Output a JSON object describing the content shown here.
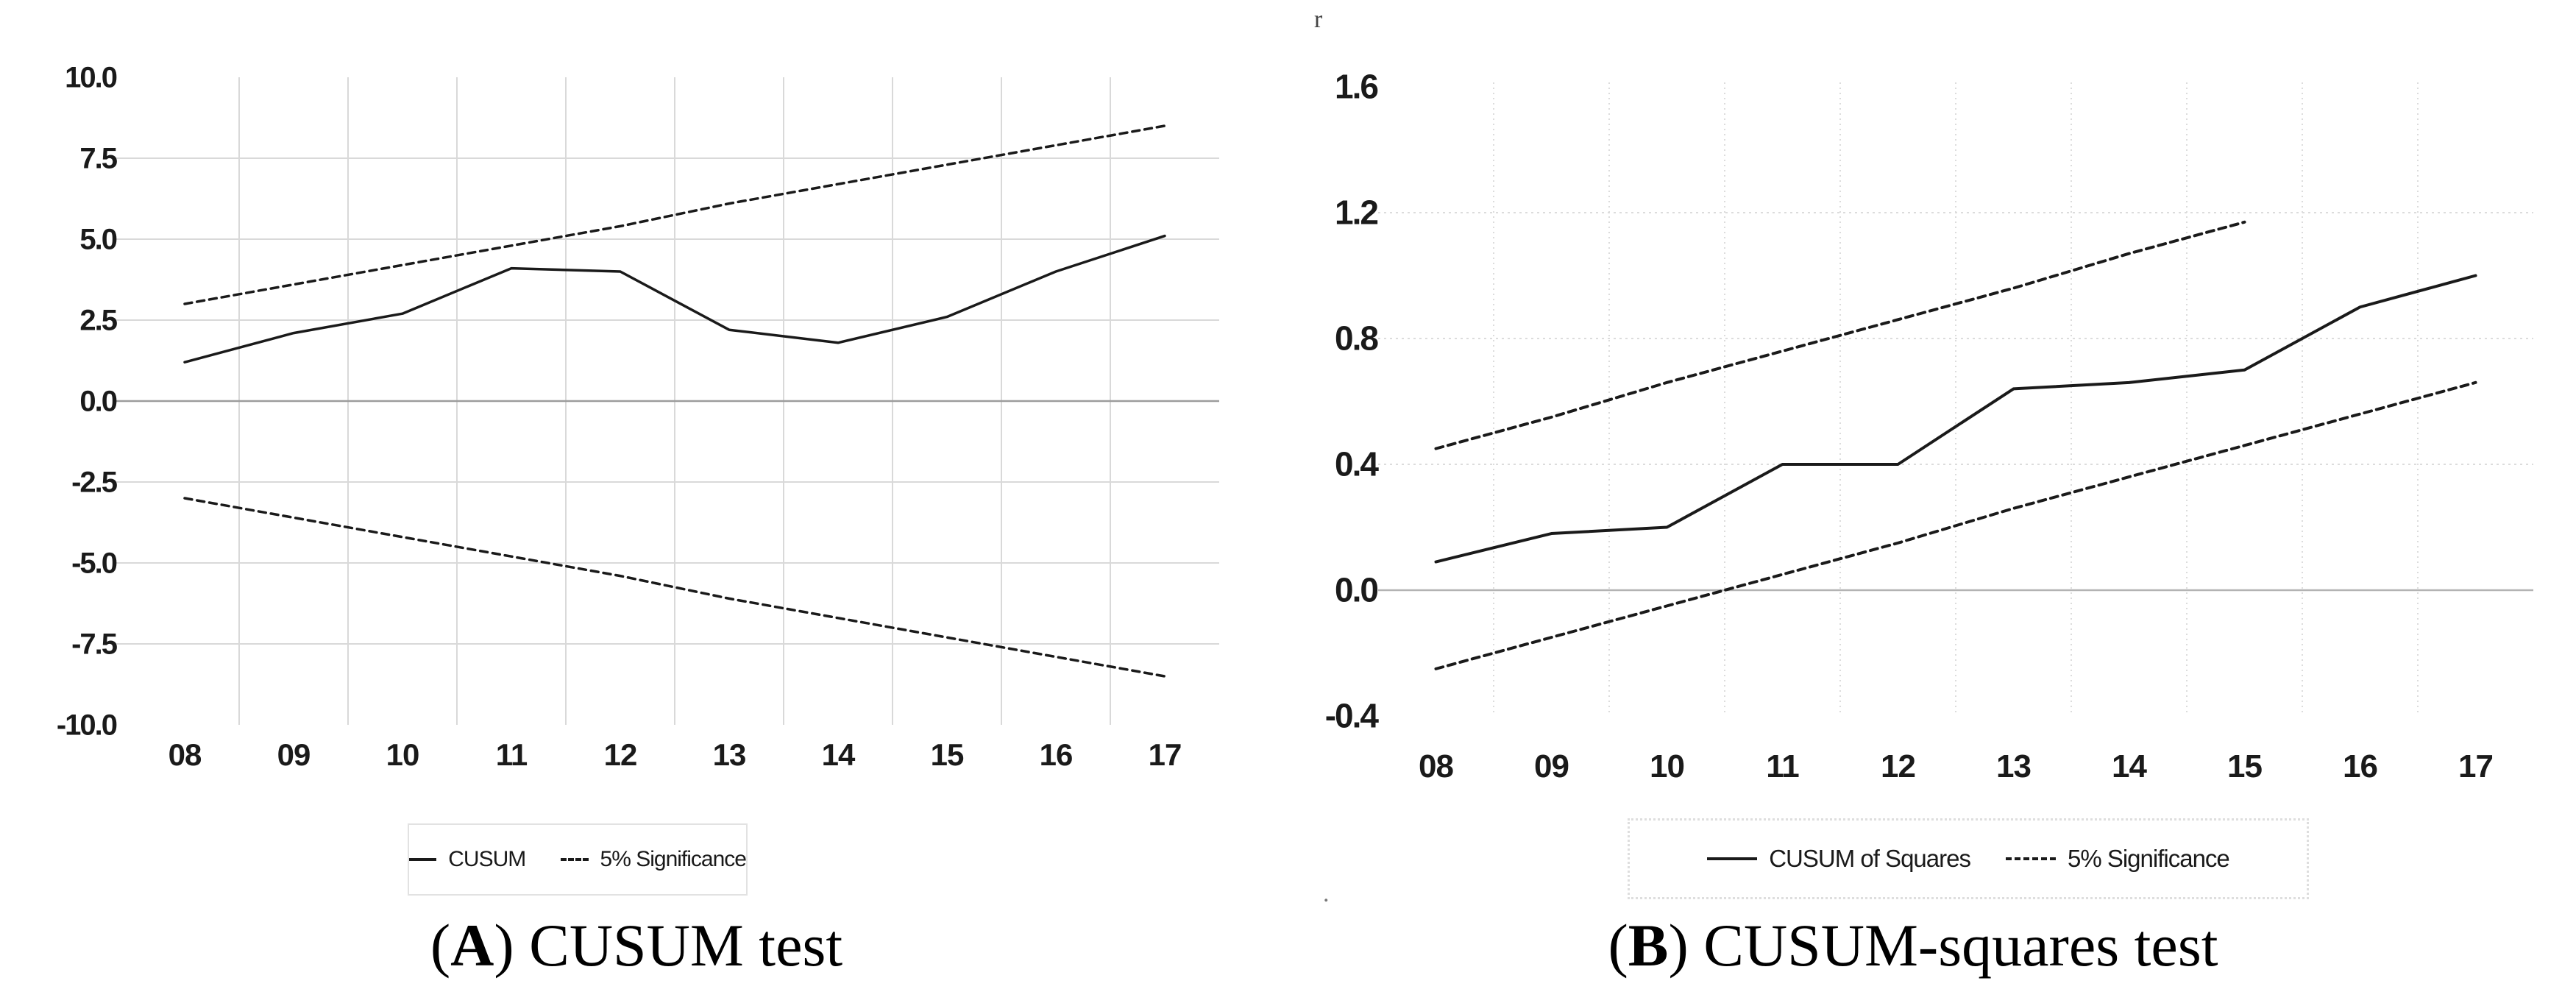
{
  "artifacts": {
    "top_mark": "r",
    "stray_dot": "."
  },
  "chart_data": [
    {
      "type": "line",
      "panel": "A",
      "caption": {
        "open": "(",
        "letter": "A",
        "rest": ") CUSUM test"
      },
      "categories": [
        "08",
        "09",
        "10",
        "11",
        "12",
        "13",
        "14",
        "15",
        "16",
        "17"
      ],
      "xlabel": "",
      "ylabel": "",
      "ylim": [
        -10.0,
        10.0
      ],
      "ytick_labels": [
        "10.0",
        "7.5",
        "5.0",
        "2.5",
        "0.0",
        "-2.5",
        "-5.0",
        "-7.5",
        "-10.0"
      ],
      "ytick_values": [
        10.0,
        7.5,
        5.0,
        2.5,
        0.0,
        -2.5,
        -5.0,
        -7.5,
        -10.0
      ],
      "gridline_values": [
        7.5,
        5.0,
        2.5,
        -2.5,
        -5.0,
        -7.5
      ],
      "zero_line_value": 0.0,
      "grid_style": "solid",
      "legend_position": "bottom-center-boxed",
      "legend_entries": [
        {
          "label": "CUSUM",
          "style": "solid"
        },
        {
          "label": "5% Significance",
          "style": "dashed"
        }
      ],
      "series": [
        {
          "name": "CUSUM",
          "style": "solid",
          "values": [
            1.2,
            2.1,
            2.7,
            4.1,
            4.0,
            2.2,
            1.8,
            2.6,
            4.0,
            5.1
          ]
        },
        {
          "name": "5% Significance upper",
          "style": "dashed",
          "values": [
            3.0,
            3.6,
            4.2,
            4.8,
            5.4,
            6.1,
            6.7,
            7.3,
            7.9,
            8.5
          ]
        },
        {
          "name": "5% Significance lower",
          "style": "dashed",
          "values": [
            -3.0,
            -3.6,
            -4.2,
            -4.8,
            -5.4,
            -6.1,
            -6.7,
            -7.3,
            -7.9,
            -8.5
          ]
        }
      ]
    },
    {
      "type": "line",
      "panel": "B",
      "caption": {
        "open": "(",
        "letter": "B",
        "rest": ") CUSUM-squares test"
      },
      "categories": [
        "08",
        "09",
        "10",
        "11",
        "12",
        "13",
        "14",
        "15",
        "16",
        "17"
      ],
      "xlabel": "",
      "ylabel": "",
      "ylim": [
        -0.4,
        1.6
      ],
      "ytick_labels": [
        "1.6",
        "1.2",
        "0.8",
        "0.4",
        "0.0",
        "-0.4"
      ],
      "ytick_values": [
        1.6,
        1.2,
        0.8,
        0.4,
        0.0,
        -0.4
      ],
      "gridline_values": [
        1.2,
        0.8,
        0.4
      ],
      "zero_line_value": 0.0,
      "grid_style": "dotted",
      "legend_position": "bottom-center-boxed",
      "legend_entries": [
        {
          "label": "CUSUM of Squares",
          "style": "solid"
        },
        {
          "label": "5% Significance",
          "style": "dashed"
        }
      ],
      "series": [
        {
          "name": "CUSUM of Squares",
          "style": "solid",
          "values": [
            0.09,
            0.18,
            0.2,
            0.4,
            0.4,
            0.64,
            0.66,
            0.7,
            0.9,
            1.0
          ]
        },
        {
          "name": "5% Significance upper",
          "style": "dashed",
          "values": [
            0.45,
            0.55,
            0.66,
            0.76,
            0.86,
            0.96,
            1.07,
            1.17,
            null,
            null
          ]
        },
        {
          "name": "5% Significance lower",
          "style": "dashed",
          "values": [
            -0.25,
            -0.15,
            -0.05,
            0.05,
            0.15,
            0.26,
            0.36,
            0.46,
            0.56,
            0.66
          ]
        }
      ]
    }
  ]
}
